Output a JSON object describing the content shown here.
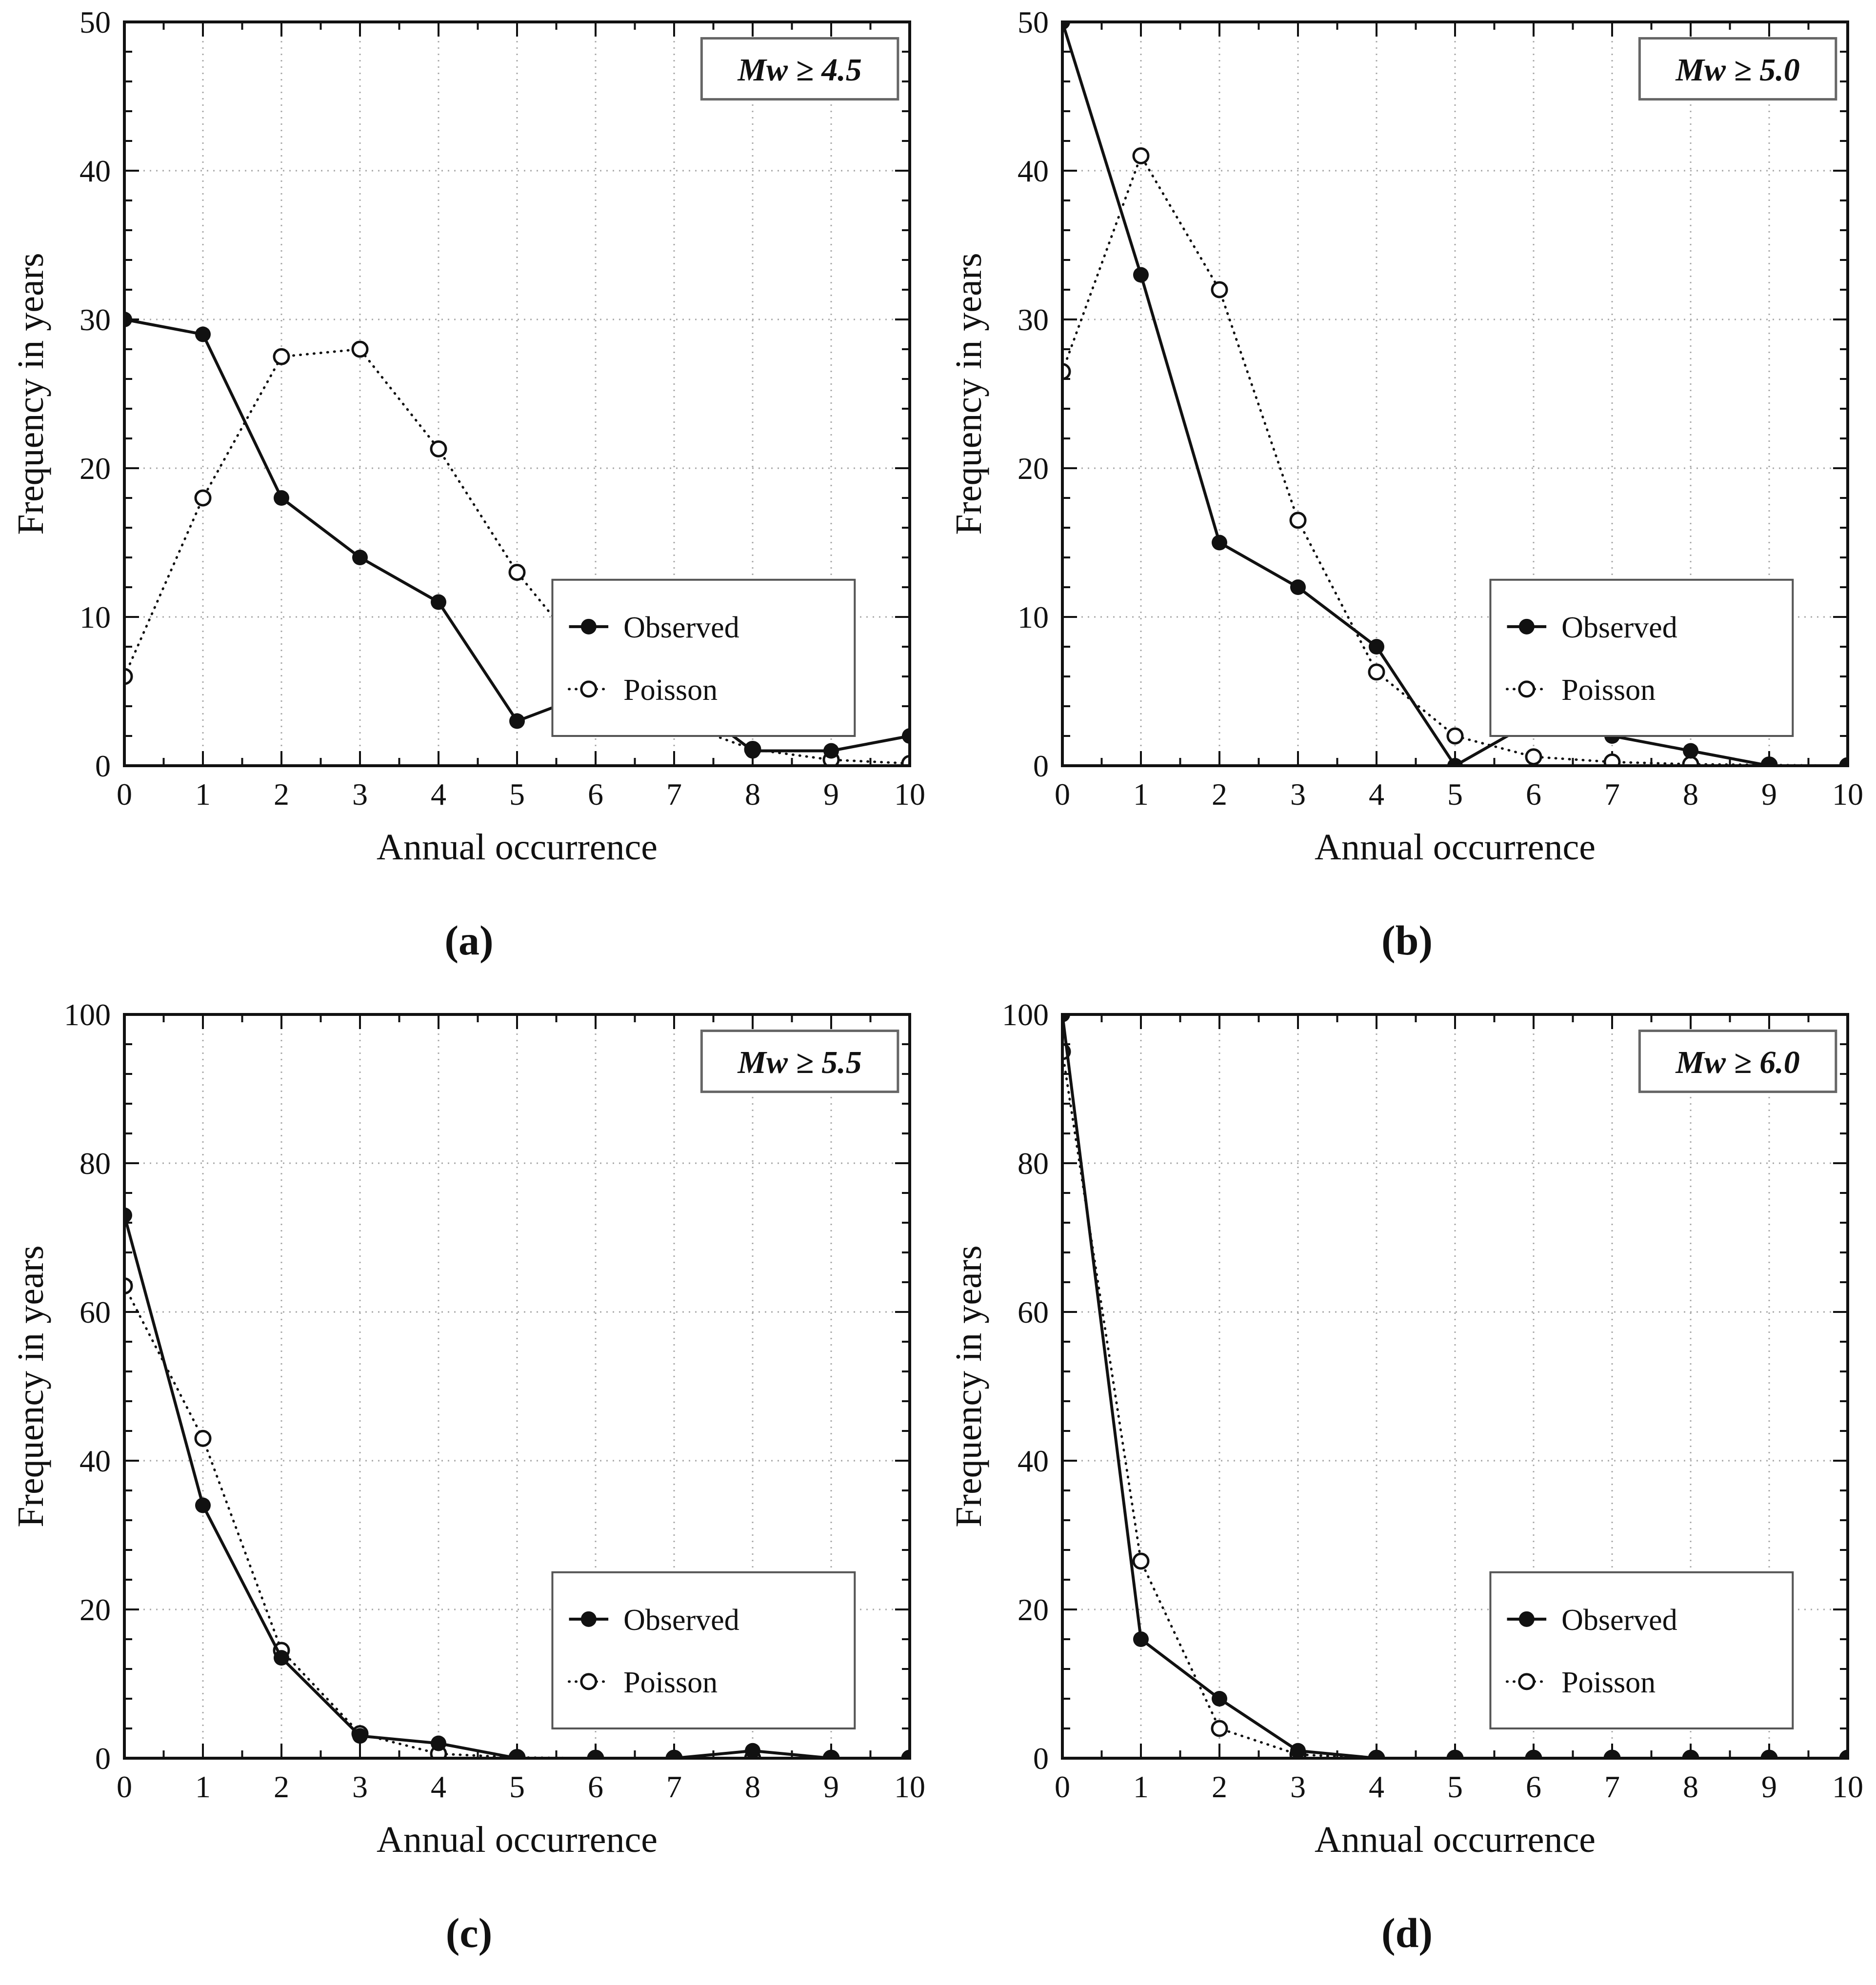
{
  "figure": {
    "xlabel": "Annual occurrence",
    "ylabel": "Frequency in years",
    "legend": {
      "observed_label": "Observed",
      "poisson_label": "Poisson"
    },
    "colors": {
      "line": "#111111",
      "grid": "#a8a8a8",
      "background": "#ffffff",
      "legend_border": "#555555",
      "title_border": "#666666",
      "text": "#111111"
    }
  },
  "chart_data": [
    {
      "type": "line",
      "panel": "a",
      "caption": "(a)",
      "title": "Mw ≥ 4.5",
      "xlabel": "Annual occurrence",
      "ylabel": "Frequency in years",
      "xlim": [
        0,
        10
      ],
      "ylim": [
        0,
        50
      ],
      "x": [
        0,
        1,
        2,
        3,
        4,
        5,
        6,
        7,
        8,
        9,
        10
      ],
      "x_ticks": [
        "0",
        "1",
        "2",
        "3",
        "4",
        "5",
        "6",
        "7",
        "8",
        "9",
        "10"
      ],
      "y_ticks": [
        "0",
        "10",
        "20",
        "30",
        "40",
        "50"
      ],
      "y_major": 10,
      "y_minor": 2,
      "x_minor": 0.5,
      "grid": true,
      "legend_position": "right-bottom",
      "series": [
        {
          "name": "Observed",
          "line": "solid",
          "marker": "filled-circle",
          "values": [
            30,
            29,
            18,
            14,
            11,
            3,
            5,
            5,
            1,
            1,
            2
          ]
        },
        {
          "name": "Poisson",
          "line": "dotted",
          "marker": "open-circle",
          "values": [
            6,
            18,
            27.5,
            28,
            21.3,
            13,
            6.5,
            3,
            1.1,
            0.4,
            0.15
          ]
        }
      ]
    },
    {
      "type": "line",
      "panel": "b",
      "caption": "(b)",
      "title": "Mw ≥ 5.0",
      "xlabel": "Annual occurrence",
      "ylabel": "Frequency in years",
      "xlim": [
        0,
        10
      ],
      "ylim": [
        0,
        50
      ],
      "x": [
        0,
        1,
        2,
        3,
        4,
        5,
        6,
        7,
        8,
        9,
        10
      ],
      "x_ticks": [
        "0",
        "1",
        "2",
        "3",
        "4",
        "5",
        "6",
        "7",
        "8",
        "9",
        "10"
      ],
      "y_ticks": [
        "0",
        "10",
        "20",
        "30",
        "40",
        "50"
      ],
      "y_major": 10,
      "y_minor": 2,
      "x_minor": 0.5,
      "grid": true,
      "legend_position": "right-bottom",
      "series": [
        {
          "name": "Observed",
          "line": "solid",
          "marker": "filled-circle",
          "values": [
            50,
            33,
            15,
            12,
            8,
            0,
            3,
            2,
            1,
            0,
            0
          ]
        },
        {
          "name": "Poisson",
          "line": "dotted",
          "marker": "open-circle",
          "values": [
            26.5,
            41,
            32,
            16.5,
            6.3,
            2,
            0.6,
            0.25,
            0.1,
            0.05,
            0
          ]
        }
      ]
    },
    {
      "type": "line",
      "panel": "c",
      "caption": "(c)",
      "title": "Mw ≥ 5.5",
      "xlabel": "Annual occurrence",
      "ylabel": "Frequency in years",
      "xlim": [
        0,
        10
      ],
      "ylim": [
        0,
        100
      ],
      "x": [
        0,
        1,
        2,
        3,
        4,
        5,
        6,
        7,
        8,
        9,
        10
      ],
      "x_ticks": [
        "0",
        "1",
        "2",
        "3",
        "4",
        "5",
        "6",
        "7",
        "8",
        "9",
        "10"
      ],
      "y_ticks": [
        "0",
        "20",
        "40",
        "60",
        "80",
        "100"
      ],
      "y_major": 20,
      "y_minor": 4,
      "x_minor": 0.5,
      "grid": true,
      "legend_position": "right-bottom",
      "series": [
        {
          "name": "Observed",
          "line": "solid",
          "marker": "filled-circle",
          "values": [
            73,
            34,
            13.5,
            3,
            2,
            0,
            0,
            0,
            1,
            0,
            0
          ]
        },
        {
          "name": "Poisson",
          "line": "dotted",
          "marker": "open-circle",
          "values": [
            63.5,
            43,
            14.5,
            3.3,
            0.6,
            0.1,
            0,
            0,
            0,
            0,
            0
          ]
        }
      ]
    },
    {
      "type": "line",
      "panel": "d",
      "caption": "(d)",
      "title": "Mw ≥ 6.0",
      "xlabel": "Annual occurrence",
      "ylabel": "Frequency in years",
      "xlim": [
        0,
        10
      ],
      "ylim": [
        0,
        100
      ],
      "x": [
        0,
        1,
        2,
        3,
        4,
        5,
        6,
        7,
        8,
        9,
        10
      ],
      "x_ticks": [
        "0",
        "1",
        "2",
        "3",
        "4",
        "5",
        "6",
        "7",
        "8",
        "9",
        "10"
      ],
      "y_ticks": [
        "0",
        "20",
        "40",
        "60",
        "80",
        "100"
      ],
      "y_major": 20,
      "y_minor": 4,
      "x_minor": 0.5,
      "grid": true,
      "legend_position": "right-bottom",
      "series": [
        {
          "name": "Observed",
          "line": "solid",
          "marker": "filled-circle",
          "values": [
            100,
            16,
            8,
            1,
            0,
            0,
            0,
            0,
            0,
            0,
            0
          ]
        },
        {
          "name": "Poisson",
          "line": "dotted",
          "marker": "open-circle",
          "values": [
            95,
            26.5,
            4,
            0.5,
            0,
            0,
            0,
            0,
            0,
            0,
            0
          ]
        }
      ]
    }
  ]
}
